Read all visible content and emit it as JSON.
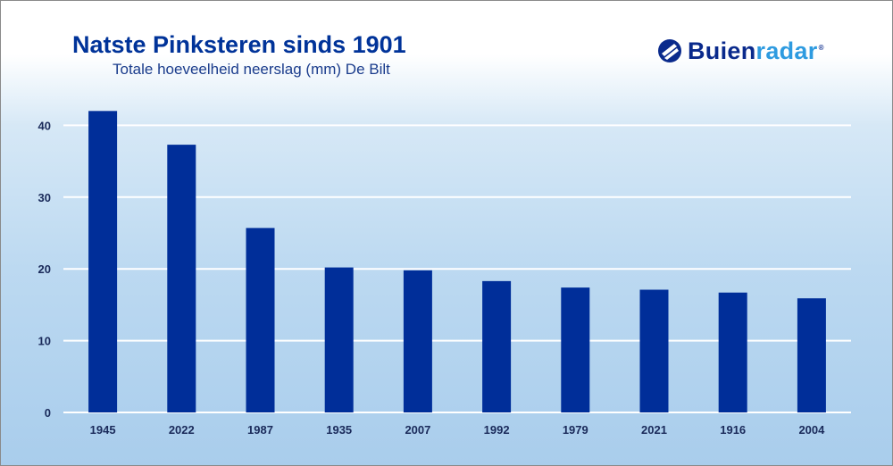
{
  "header": {
    "title": "Natste Pinksteren sinds 1901",
    "subtitle": "Totale hoeveelheid neerslag (mm) De Bilt"
  },
  "logo": {
    "text_part1": "Buien",
    "text_part2": "radar",
    "registered": "®",
    "icon": "buienradar-logo-icon"
  },
  "colors": {
    "bar": "#002e99",
    "title": "#003399",
    "gridline": "#ffffff",
    "logo_dark": "#0a2a8c",
    "logo_light": "#2e9be0"
  },
  "chart_data": {
    "type": "bar",
    "title": "Natste Pinksteren sinds 1901",
    "subtitle": "Totale hoeveelheid neerslag (mm) De Bilt",
    "categories": [
      "1945",
      "2022",
      "1987",
      "1935",
      "2007",
      "1992",
      "1979",
      "2021",
      "1916",
      "2004"
    ],
    "values": [
      42.0,
      37.3,
      25.7,
      20.2,
      19.8,
      18.3,
      17.4,
      17.1,
      16.7,
      15.9
    ],
    "ylim": [
      0,
      45
    ],
    "yticks": [
      0,
      10,
      20,
      30,
      40
    ],
    "grid": true,
    "xlabel": "",
    "ylabel": ""
  }
}
